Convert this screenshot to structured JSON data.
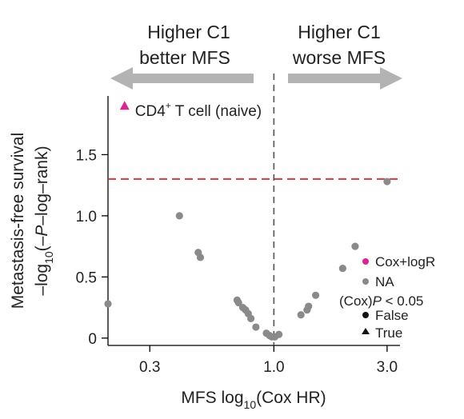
{
  "chart_data": {
    "type": "scatter",
    "xscale": "log",
    "xlim": [
      0.2,
      3.4
    ],
    "ylim": [
      -0.06,
      1.98
    ],
    "xticks": [
      {
        "v": 0.3,
        "label": "0.3"
      },
      {
        "v": 1.0,
        "label": "1.0"
      },
      {
        "v": 3.0,
        "label": "3.0"
      }
    ],
    "yticks": [
      {
        "v": 0,
        "label": "0"
      },
      {
        "v": 0.5,
        "label": "0.5"
      },
      {
        "v": 1.0,
        "label": "1.0"
      },
      {
        "v": 1.5,
        "label": "1.5"
      }
    ],
    "xlabel_pre": "MFS log",
    "xlabel_sub": "10",
    "xlabel_post": "(Cox HR)",
    "ylabel_line1": "Metastasis-free survival",
    "ylabel_line2_a": "–log",
    "ylabel_line2_sub": "10",
    "ylabel_line2_b": "(–",
    "ylabel_line2_p": "P",
    "ylabel_line2_c": "–log–rank)",
    "arrow_left_line1": "Higher C1",
    "arrow_left_line2": "better MFS",
    "arrow_right_line1": "Higher C1",
    "arrow_right_line2": "worse MFS",
    "significance_line_y": 1.301,
    "vertical_line_x": 1.0,
    "colors": {
      "na": "#8a8a8a",
      "coxlogr": "#d9258f",
      "sig_line": "#d9363e",
      "arrow": "#b3b3b3",
      "axis": "#000000"
    },
    "highlight": {
      "x": 0.235,
      "y": 1.9,
      "marker": "triangle",
      "label_main": "CD4",
      "label_sup": "+",
      "label_rest": " T cell (naive)"
    },
    "points": [
      {
        "x": 0.2,
        "y": 0.28
      },
      {
        "x": 0.4,
        "y": 1.0
      },
      {
        "x": 0.48,
        "y": 0.7
      },
      {
        "x": 0.49,
        "y": 0.66
      },
      {
        "x": 0.7,
        "y": 0.31
      },
      {
        "x": 0.71,
        "y": 0.29
      },
      {
        "x": 0.74,
        "y": 0.25
      },
      {
        "x": 0.76,
        "y": 0.23
      },
      {
        "x": 0.78,
        "y": 0.2
      },
      {
        "x": 0.8,
        "y": 0.16
      },
      {
        "x": 0.84,
        "y": 0.09
      },
      {
        "x": 0.93,
        "y": 0.04
      },
      {
        "x": 0.96,
        "y": 0.02
      },
      {
        "x": 0.98,
        "y": 0.01
      },
      {
        "x": 1.01,
        "y": 0.01
      },
      {
        "x": 1.05,
        "y": 0.03
      },
      {
        "x": 1.3,
        "y": 0.19
      },
      {
        "x": 1.38,
        "y": 0.23
      },
      {
        "x": 1.4,
        "y": 0.26
      },
      {
        "x": 1.5,
        "y": 0.35
      },
      {
        "x": 1.95,
        "y": 0.57
      },
      {
        "x": 2.2,
        "y": 0.75
      },
      {
        "x": 3.0,
        "y": 1.28
      }
    ],
    "legend": {
      "color_items": [
        {
          "label": "Cox+logR",
          "color": "#d9258f"
        },
        {
          "label": "NA",
          "color": "#8a8a8a"
        }
      ],
      "shape_title_pre": "(Cox)",
      "shape_title_p": "P",
      "shape_title_post": " < 0.05",
      "shape_items": [
        {
          "label": "False",
          "shape": "circle"
        },
        {
          "label": "True",
          "shape": "triangle"
        }
      ]
    }
  }
}
